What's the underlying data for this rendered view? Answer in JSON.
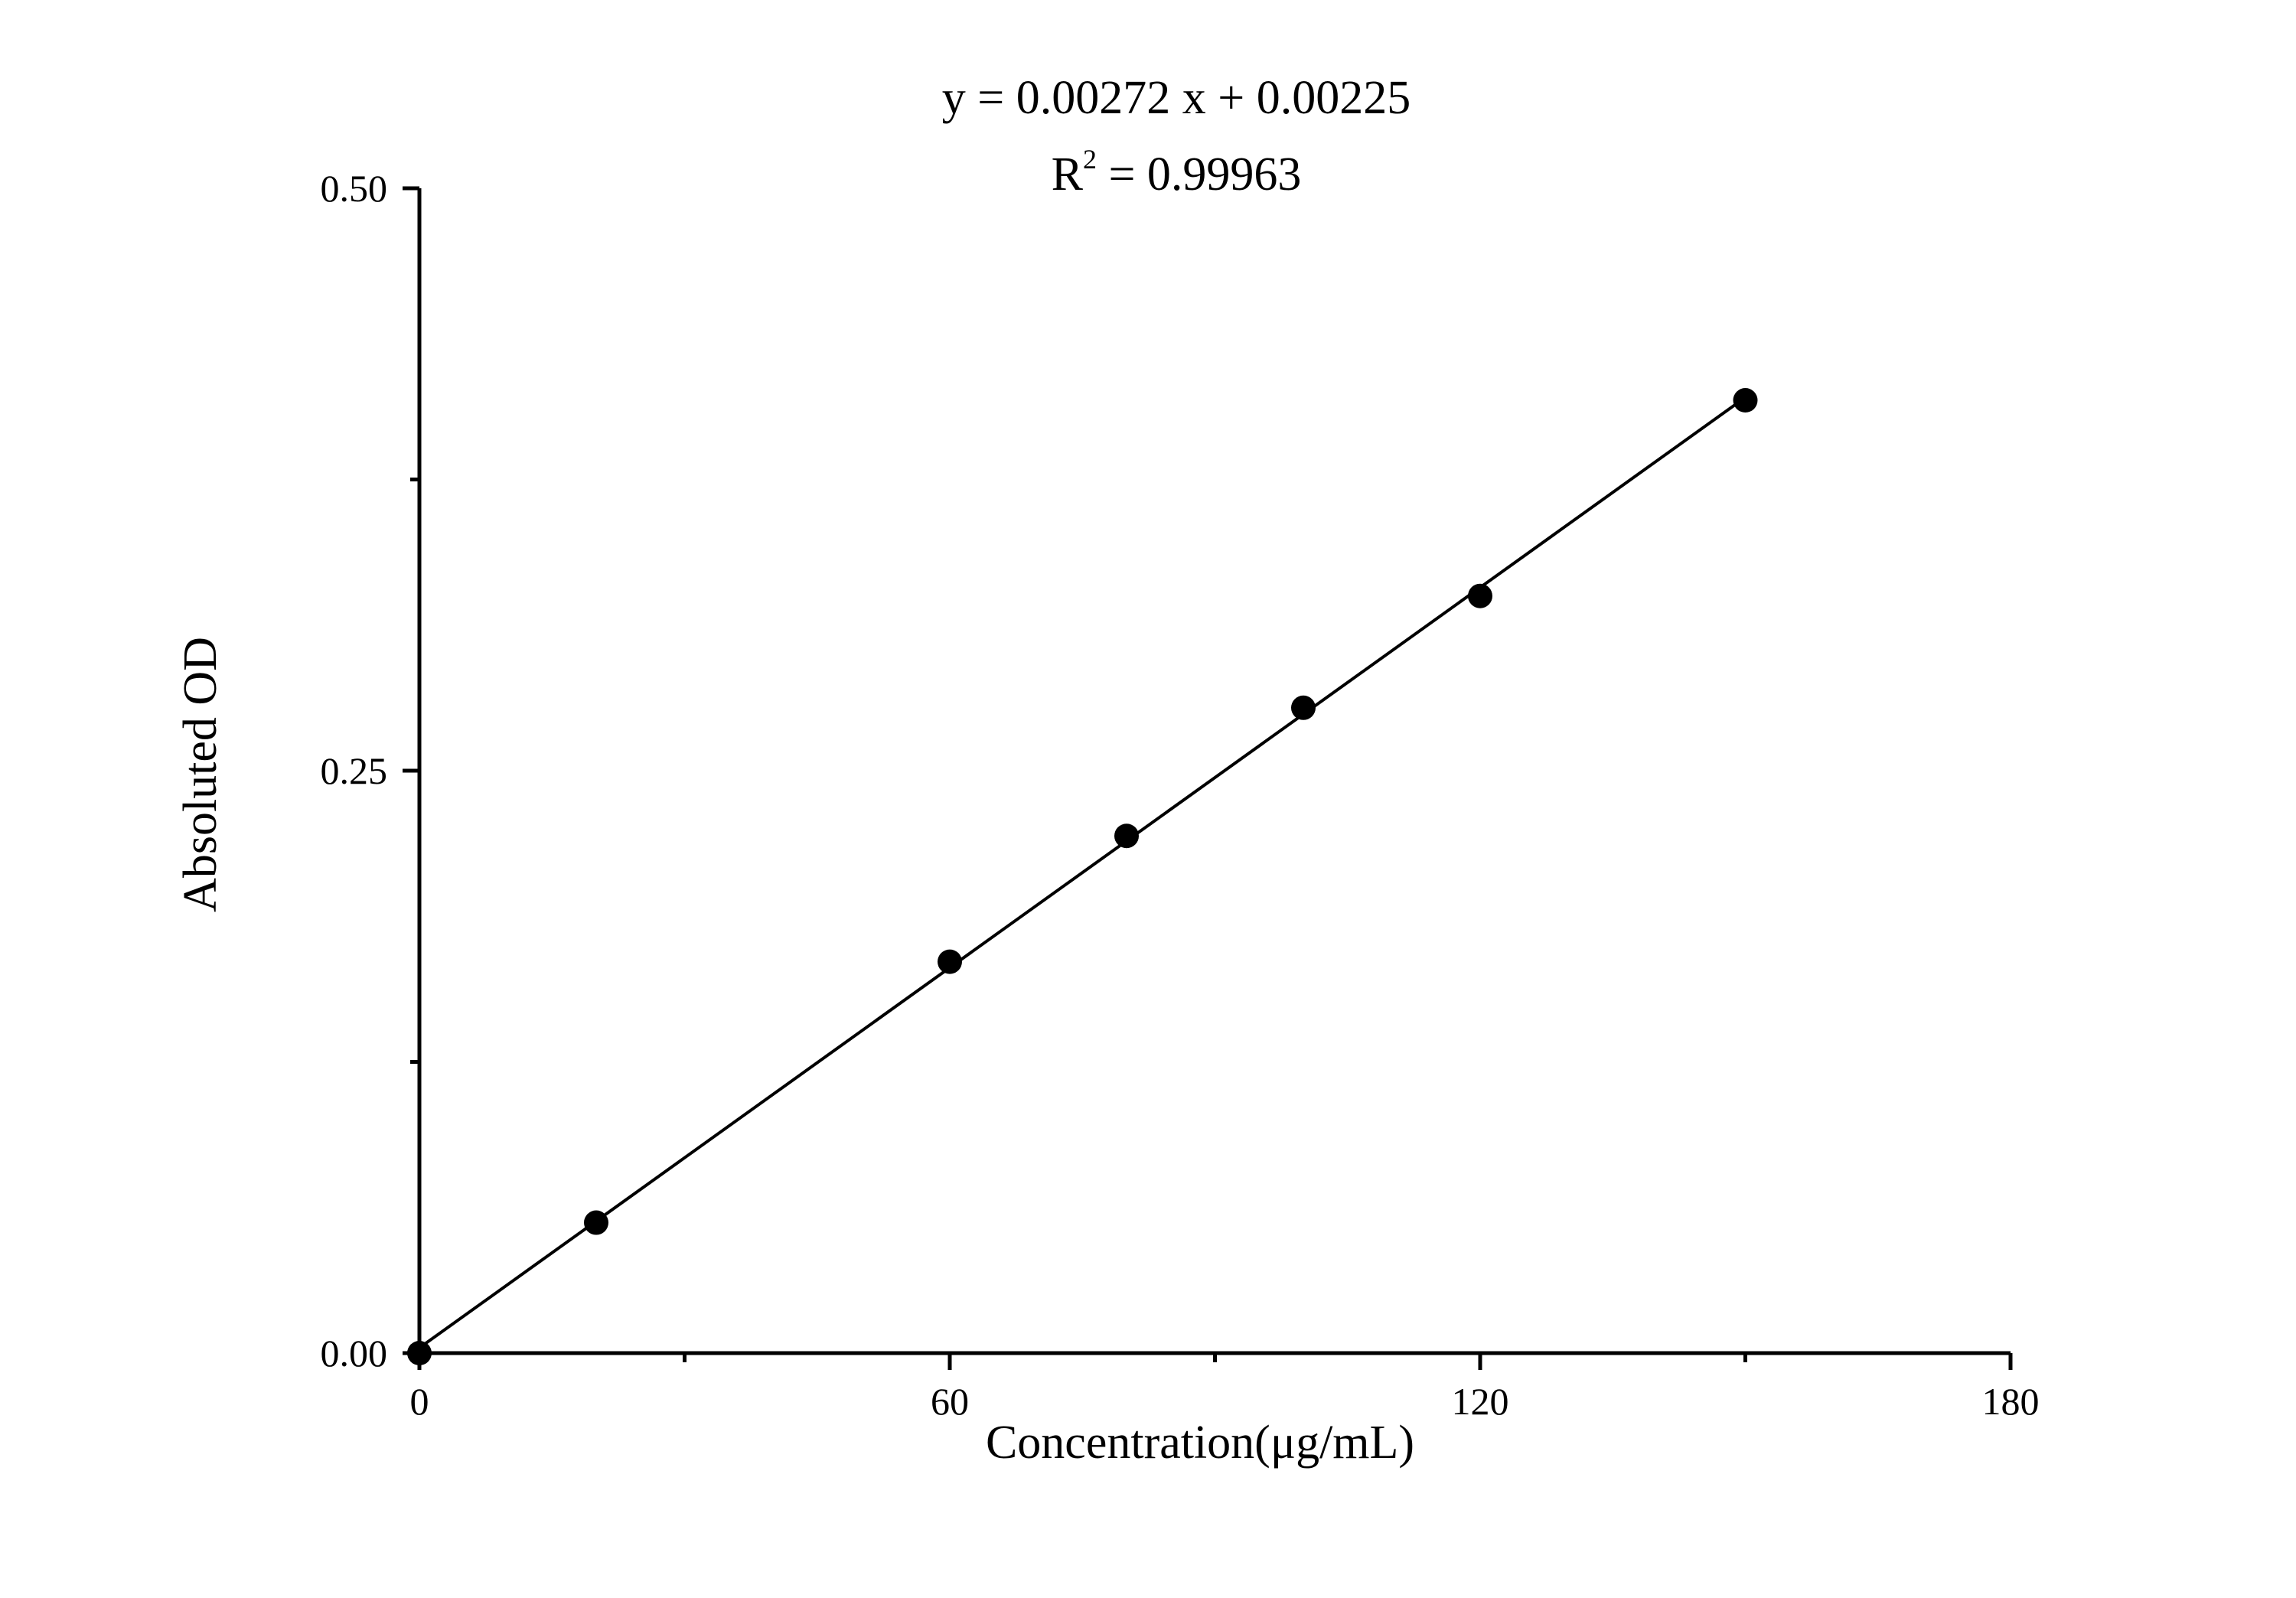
{
  "chart_data": {
    "type": "scatter",
    "xlabel": "Concentration(μg/mL)",
    "ylabel": "Absoluted OD",
    "xlim": [
      0,
      180
    ],
    "ylim": [
      0,
      0.5
    ],
    "x_ticks": [
      "0",
      "60",
      "120",
      "180"
    ],
    "y_ticks": [
      "0.00",
      "0.25",
      "0.50"
    ],
    "x_minor_ticks": [
      30,
      90,
      150
    ],
    "y_minor_ticks": [
      0.125,
      0.375
    ],
    "grid": false,
    "annotations": {
      "equation": "y = 0.00272 x + 0.00225",
      "r2_prefix": "R",
      "r2_sup": "2",
      "r2_value": " = 0.99963"
    },
    "series": [
      {
        "x": [
          0,
          20,
          60,
          80,
          100,
          120,
          150
        ],
        "y": [
          0.0,
          0.056,
          0.168,
          0.222,
          0.277,
          0.325,
          0.409
        ]
      }
    ],
    "fit_line": {
      "slope": 0.00272,
      "intercept": 0.00225,
      "x_range": [
        0,
        150
      ]
    },
    "colors": {
      "marker": "#000000",
      "line": "#000000"
    }
  }
}
